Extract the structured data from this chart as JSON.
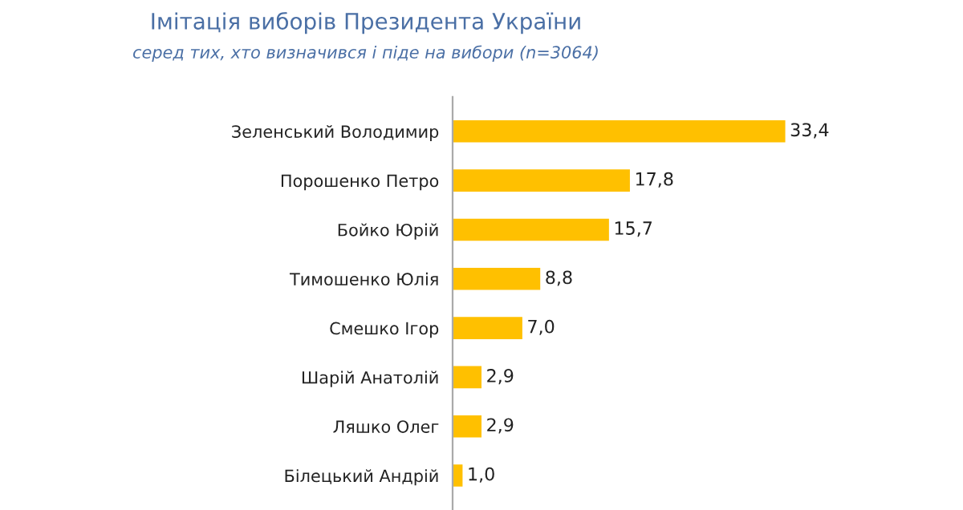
{
  "chart_data": {
    "type": "bar",
    "orientation": "horizontal",
    "title": "Імітація виборів Президента України",
    "subtitle": "серед тих, хто визначився і піде на вибори (n=3064)",
    "categories": [
      "Зеленський Володимир",
      "Порошенко Петро",
      "Бойко Юрій",
      "Тимошенко Юлія",
      "Смешко Ігор",
      "Шарій Анатолій",
      "Ляшко Олег",
      "Білецький Андрій"
    ],
    "values": [
      33.4,
      17.8,
      15.7,
      8.8,
      7.0,
      2.9,
      2.9,
      1.0
    ],
    "value_labels": [
      "33,4",
      "17,8",
      "15,7",
      "8,8",
      "7,0",
      "2,9",
      "2,9",
      "1,0"
    ],
    "color": "#ffc000",
    "grid": false,
    "legend": false
  }
}
